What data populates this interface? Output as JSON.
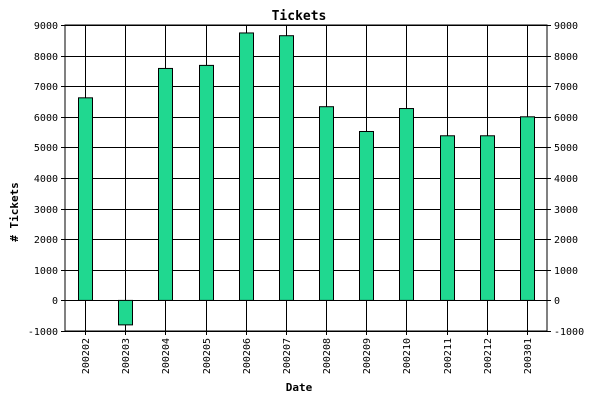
{
  "chart_data": {
    "type": "bar",
    "title": "Tickets",
    "xlabel": "Date",
    "ylabel": "# Tickets",
    "categories": [
      "200202",
      "200203",
      "200204",
      "200205",
      "200206",
      "200207",
      "200208",
      "200209",
      "200210",
      "200211",
      "200212",
      "200301"
    ],
    "values": [
      6620,
      -800,
      7580,
      7680,
      8740,
      8650,
      6330,
      5520,
      6270,
      5380,
      5380,
      6000
    ],
    "ylim": [
      -1000,
      9000
    ],
    "yticks": [
      -1000,
      0,
      1000,
      2000,
      3000,
      4000,
      5000,
      6000,
      7000,
      8000,
      9000
    ],
    "grid": true,
    "right_axis_mirrored": true,
    "bar_color": "#20d890",
    "bar_outline_color": "#000000",
    "background_color": "#ffffff"
  }
}
